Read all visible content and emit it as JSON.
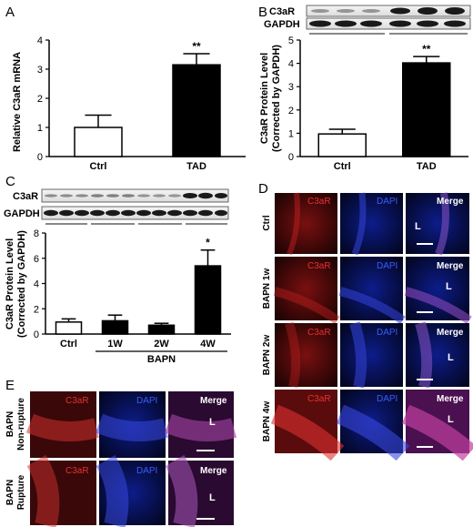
{
  "panels": {
    "A": "A",
    "B": "B",
    "C": "C",
    "D": "D",
    "E": "E"
  },
  "chart_data": [
    {
      "id": "A",
      "type": "bar",
      "categories": [
        "Ctrl",
        "TAD"
      ],
      "values": [
        1.0,
        3.15
      ],
      "errors": [
        0.42,
        0.38
      ],
      "fills": [
        "#ffffff",
        "#000000"
      ],
      "significance": [
        "",
        "**"
      ],
      "ylabel": "Relative C3aR mRNA",
      "ylim": [
        0,
        4
      ],
      "yticks": [
        "0",
        "1",
        "2",
        "3",
        "4"
      ]
    },
    {
      "id": "B",
      "type": "bar",
      "categories": [
        "Ctrl",
        "TAD"
      ],
      "values": [
        0.97,
        4.02
      ],
      "errors": [
        0.2,
        0.27
      ],
      "fills": [
        "#ffffff",
        "#000000"
      ],
      "significance": [
        "",
        "**"
      ],
      "ylabel": [
        "C3aR Protein Level",
        "(Corrected by GAPDH)"
      ],
      "ylim": [
        0,
        5
      ],
      "yticks": [
        "0",
        "1",
        "2",
        "3",
        "4",
        "5"
      ],
      "blot_labels": [
        "C3aR",
        "GAPDH"
      ]
    },
    {
      "id": "C",
      "type": "bar",
      "categories": [
        "Ctrl",
        "1W",
        "2W",
        "4W"
      ],
      "values": [
        0.95,
        1.05,
        0.7,
        5.4
      ],
      "errors": [
        0.25,
        0.45,
        0.15,
        1.25
      ],
      "fills": [
        "#ffffff",
        "#000000",
        "#000000",
        "#000000"
      ],
      "significance": [
        "",
        "",
        "",
        "*"
      ],
      "ylabel": [
        "C3aR Protein Level",
        "(Corrected by GAPDH)"
      ],
      "ylim": [
        0,
        8
      ],
      "yticks": [
        "0",
        "2",
        "4",
        "6",
        "8"
      ],
      "group_label": "BAPN",
      "blot_labels": [
        "C3aR",
        "GAPDH"
      ]
    }
  ],
  "microscopy_D": {
    "columns": [
      "C3aR",
      "DAPI",
      "Merge"
    ],
    "rows": [
      {
        "label": "Ctrl",
        "lumen": "L"
      },
      {
        "label": "BAPN 1w",
        "lumen": "L"
      },
      {
        "label": "BAPN 2w",
        "lumen": "L"
      },
      {
        "label": "BAPN 4w",
        "lumen": "L"
      }
    ]
  },
  "microscopy_E": {
    "columns": [
      "C3aR",
      "DAPI",
      "Merge"
    ],
    "rows": [
      {
        "label": [
          "BAPN",
          "Non-rupture"
        ],
        "lumen": "L"
      },
      {
        "label": [
          "BAPN",
          "Rupture"
        ],
        "lumen": "L"
      }
    ]
  },
  "colors": {
    "c3ar_text": "#e83030",
    "dapi_text": "#3a5cff",
    "merge_text": "#ffffff"
  }
}
